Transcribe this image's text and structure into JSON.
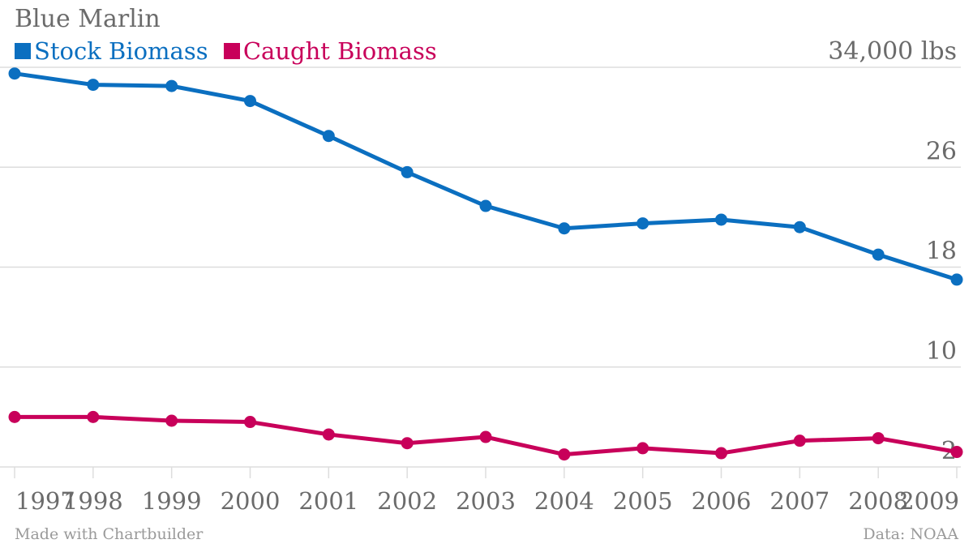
{
  "colors": {
    "stock": "#0b6fc0",
    "caught": "#c8005a",
    "text": "#6b6b6b",
    "grid": "#dddddd",
    "footer": "#9a9a9a"
  },
  "footer": {
    "left": "Made with Chartbuilder",
    "right": "Data: NOAA"
  },
  "chart_data": {
    "type": "line",
    "title": "Blue Marlin",
    "x": [
      "1997",
      "1998",
      "1999",
      "2000",
      "2001",
      "2002",
      "2003",
      "2004",
      "2005",
      "2006",
      "2007",
      "2008",
      "2009"
    ],
    "series": [
      {
        "name": "Stock Biomass",
        "values": [
          33.5,
          32.6,
          32.5,
          31.3,
          28.5,
          25.6,
          22.9,
          21.1,
          21.5,
          21.8,
          21.2,
          19.0,
          17.0
        ]
      },
      {
        "name": "Caught Biomass",
        "values": [
          6.0,
          6.0,
          5.7,
          5.6,
          4.6,
          3.9,
          4.4,
          3.0,
          3.5,
          3.1,
          4.1,
          4.3,
          3.2
        ]
      }
    ],
    "yticks": [
      {
        "value": 34,
        "label": "34,000 lbs"
      },
      {
        "value": 26,
        "label": "26"
      },
      {
        "value": 18,
        "label": "18"
      },
      {
        "value": 10,
        "label": "10"
      },
      {
        "value": 2,
        "label": "2"
      }
    ],
    "ylim": [
      2,
      34
    ],
    "grid": true,
    "legend_position": "top-left"
  }
}
